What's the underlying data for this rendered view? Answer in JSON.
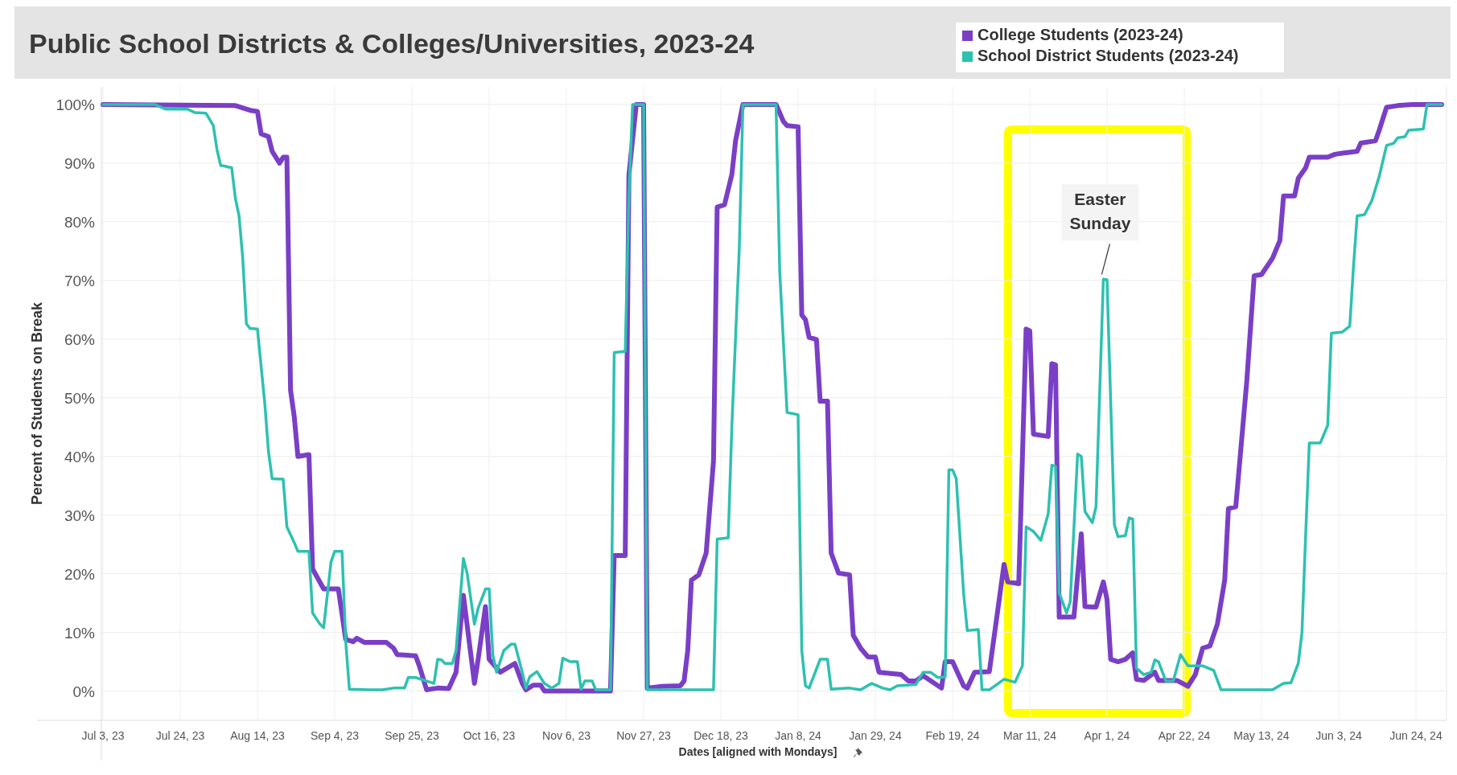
{
  "chart_data": {
    "type": "line",
    "title": "Public School Districts & Colleges/Universities, 2023-24",
    "xlabel": "Dates [aligned with Mondays]",
    "ylabel": "Percent of Students on Break",
    "xlim": [
      "2023-07-03",
      "2024-07-01"
    ],
    "xticks": [
      {
        "value": "2023-07-03",
        "label": "Jul 3, 23"
      },
      {
        "value": "2023-07-24",
        "label": "Jul 24, 23"
      },
      {
        "value": "2023-08-14",
        "label": "Aug 14, 23"
      },
      {
        "value": "2023-09-04",
        "label": "Sep 4, 23"
      },
      {
        "value": "2023-09-25",
        "label": "Sep 25, 23"
      },
      {
        "value": "2023-10-16",
        "label": "Oct 16, 23"
      },
      {
        "value": "2023-11-06",
        "label": "Nov 6, 23"
      },
      {
        "value": "2023-11-27",
        "label": "Nov 27, 23"
      },
      {
        "value": "2023-12-18",
        "label": "Dec 18, 23"
      },
      {
        "value": "2024-01-08",
        "label": "Jan 8, 24"
      },
      {
        "value": "2024-01-29",
        "label": "Jan 29, 24"
      },
      {
        "value": "2024-02-19",
        "label": "Feb 19, 24"
      },
      {
        "value": "2024-03-11",
        "label": "Mar 11, 24"
      },
      {
        "value": "2024-04-01",
        "label": "Apr 1, 24"
      },
      {
        "value": "2024-04-22",
        "label": "Apr 22, 24"
      },
      {
        "value": "2024-05-13",
        "label": "May 13, 24"
      },
      {
        "value": "2024-06-03",
        "label": "Jun 3, 24"
      },
      {
        "value": "2024-06-24",
        "label": "Jun 24, 24"
      }
    ],
    "ylim": [
      -5,
      103
    ],
    "yticks": [
      {
        "value": 0,
        "label": "0%"
      },
      {
        "value": 10,
        "label": "10%"
      },
      {
        "value": 20,
        "label": "20%"
      },
      {
        "value": 30,
        "label": "30%"
      },
      {
        "value": 40,
        "label": "40%"
      },
      {
        "value": 50,
        "label": "50%"
      },
      {
        "value": 60,
        "label": "60%"
      },
      {
        "value": 70,
        "label": "70%"
      },
      {
        "value": 80,
        "label": "80%"
      },
      {
        "value": 90,
        "label": "90%"
      },
      {
        "value": 100,
        "label": "100%"
      }
    ],
    "grid": true,
    "legend": "top right",
    "annotations": [
      {
        "text": "Easter Sunday",
        "x": "2024-03-31",
        "y": 70.2
      }
    ],
    "series": [
      {
        "name": "College Students (2023-24)",
        "color": "#7a3fc6",
        "x": [
          "2023-07-03",
          "2023-08-08",
          "2023-08-12",
          "2023-08-14",
          "2023-08-15",
          "2023-08-17",
          "2023-08-18",
          "2023-08-20",
          "2023-08-21",
          "2023-08-22",
          "2023-08-23",
          "2023-08-24",
          "2023-08-25",
          "2023-08-28",
          "2023-08-29",
          "2023-09-01",
          "2023-09-05",
          "2023-09-07",
          "2023-09-09",
          "2023-09-10",
          "2023-09-12",
          "2023-09-18",
          "2023-09-20",
          "2023-09-21",
          "2023-09-26",
          "2023-09-27",
          "2023-09-29",
          "2023-10-02",
          "2023-10-05",
          "2023-10-07",
          "2023-10-09",
          "2023-10-12",
          "2023-10-13",
          "2023-10-15",
          "2023-10-16",
          "2023-10-19",
          "2023-10-23",
          "2023-10-25",
          "2023-10-26",
          "2023-10-28",
          "2023-10-30",
          "2023-10-31",
          "2023-11-18",
          "2023-11-19",
          "2023-11-22",
          "2023-11-23",
          "2023-11-25",
          "2023-11-27",
          "2023-11-28",
          "2023-12-02",
          "2023-12-07",
          "2023-12-08",
          "2023-12-09",
          "2023-12-10",
          "2023-12-12",
          "2023-12-14",
          "2023-12-16",
          "2023-12-17",
          "2023-12-19",
          "2023-12-21",
          "2023-12-22",
          "2023-12-24",
          "2024-01-02",
          "2024-01-04",
          "2024-01-05",
          "2024-01-08",
          "2024-01-09",
          "2024-01-10",
          "2024-01-11",
          "2024-01-13",
          "2024-01-14",
          "2024-01-16",
          "2024-01-17",
          "2024-01-19",
          "2024-01-22",
          "2024-01-23",
          "2024-01-25",
          "2024-01-27",
          "2024-01-29",
          "2024-01-30",
          "2024-02-05",
          "2024-02-07",
          "2024-02-09",
          "2024-02-11",
          "2024-02-16",
          "2024-02-17",
          "2024-02-19",
          "2024-02-22",
          "2024-02-23",
          "2024-02-25",
          "2024-02-29",
          "2024-03-04",
          "2024-03-05",
          "2024-03-08",
          "2024-03-10",
          "2024-03-11",
          "2024-03-12",
          "2024-03-16",
          "2024-03-17",
          "2024-03-18",
          "2024-03-19",
          "2024-03-23",
          "2024-03-25",
          "2024-03-26",
          "2024-03-29",
          "2024-03-31",
          "2024-04-01",
          "2024-04-02",
          "2024-04-04",
          "2024-04-06",
          "2024-04-08",
          "2024-04-09",
          "2024-04-11",
          "2024-04-14",
          "2024-04-15",
          "2024-04-20",
          "2024-04-23",
          "2024-04-25",
          "2024-04-27",
          "2024-04-29",
          "2024-05-01",
          "2024-05-03",
          "2024-05-04",
          "2024-05-06",
          "2024-05-07",
          "2024-05-09",
          "2024-05-11",
          "2024-05-13",
          "2024-05-16",
          "2024-05-18",
          "2024-05-19",
          "2024-05-22",
          "2024-05-23",
          "2024-05-25",
          "2024-05-26",
          "2024-05-31",
          "2024-06-02",
          "2024-06-04",
          "2024-06-08",
          "2024-06-09",
          "2024-06-13",
          "2024-06-14",
          "2024-06-16",
          "2024-06-19",
          "2024-06-23",
          "2024-07-01"
        ],
        "values": [
          100,
          99.8,
          99,
          98.8,
          95,
          94.5,
          92,
          90,
          91,
          91,
          51.3,
          46.8,
          40,
          40.3,
          20.8,
          17.4,
          17.4,
          8.8,
          8.4,
          9,
          8.3,
          8.3,
          7.3,
          6.2,
          6,
          4.3,
          0.2,
          0.5,
          0.4,
          3.2,
          16.3,
          1.3,
          5.4,
          14.4,
          5.4,
          3.2,
          4.7,
          1.3,
          0.2,
          1,
          1,
          0,
          0,
          23.1,
          23.1,
          88,
          100,
          100,
          0.5,
          0.8,
          0.9,
          1.7,
          6.9,
          18.9,
          19.8,
          23.5,
          39.2,
          82.5,
          82.9,
          88.1,
          93.8,
          100,
          100,
          97.1,
          96.4,
          96.2,
          64.1,
          63.3,
          60.3,
          59.9,
          49.4,
          49.4,
          23.5,
          20.1,
          19.8,
          9.5,
          7.3,
          5.8,
          5.8,
          3.2,
          2.8,
          1.7,
          1.7,
          2.6,
          0.5,
          5,
          5,
          0.9,
          0.5,
          3.2,
          3.3,
          21.6,
          18.6,
          18.3,
          61.7,
          61.4,
          43.8,
          43.4,
          55.8,
          55.6,
          12.6,
          12.6,
          26.8,
          14.4,
          14.3,
          18.6,
          15.6,
          5.4,
          5,
          5.4,
          6.5,
          2,
          1.8,
          3.2,
          1.8,
          1.8,
          0.8,
          2.8,
          7.3,
          7.7,
          11.4,
          18.9,
          31.1,
          31.4,
          38.5,
          52.8,
          70.8,
          71,
          73.8,
          76.8,
          84.4,
          84.4,
          87.4,
          89.2,
          91,
          91,
          91.5,
          91.7,
          92,
          93.4,
          93.8,
          95.6,
          99.5,
          99.8,
          100,
          100
        ]
      },
      {
        "name": "School District Students (2023-24)",
        "color": "#2dc1b0",
        "x": [
          "2023-07-03",
          "2023-07-17",
          "2023-07-20",
          "2023-07-26",
          "2023-07-28",
          "2023-07-31",
          "2023-08-02",
          "2023-08-03",
          "2023-08-04",
          "2023-08-05",
          "2023-08-07",
          "2023-08-08",
          "2023-08-09",
          "2023-08-10",
          "2023-08-11",
          "2023-08-12",
          "2023-08-14",
          "2023-08-16",
          "2023-08-17",
          "2023-08-18",
          "2023-08-21",
          "2023-08-22",
          "2023-08-24",
          "2023-08-25",
          "2023-08-28",
          "2023-08-29",
          "2023-08-31",
          "2023-09-01",
          "2023-09-03",
          "2023-09-04",
          "2023-09-06",
          "2023-09-07",
          "2023-09-08",
          "2023-09-13",
          "2023-09-17",
          "2023-09-20",
          "2023-09-23",
          "2023-09-24",
          "2023-09-26",
          "2023-09-30",
          "2023-10-01",
          "2023-10-02",
          "2023-10-03",
          "2023-10-04",
          "2023-10-06",
          "2023-10-07",
          "2023-10-09",
          "2023-10-10",
          "2023-10-12",
          "2023-10-13",
          "2023-10-15",
          "2023-10-16",
          "2023-10-17",
          "2023-10-18",
          "2023-10-20",
          "2023-10-22",
          "2023-10-23",
          "2023-10-25",
          "2023-10-26",
          "2023-10-27",
          "2023-10-29",
          "2023-10-31",
          "2023-11-02",
          "2023-11-04",
          "2023-11-05",
          "2023-11-07",
          "2023-11-09",
          "2023-11-10",
          "2023-11-11",
          "2023-11-13",
          "2023-11-14",
          "2023-11-18",
          "2023-11-19",
          "2023-11-22",
          "2023-11-23",
          "2023-11-24",
          "2023-11-27",
          "2023-11-28",
          "2023-12-16",
          "2023-12-17",
          "2023-12-20",
          "2023-12-21",
          "2023-12-23",
          "2023-12-24",
          "2024-01-02",
          "2024-01-03",
          "2024-01-05",
          "2024-01-08",
          "2024-01-09",
          "2024-01-10",
          "2024-01-11",
          "2024-01-14",
          "2024-01-16",
          "2024-01-17",
          "2024-01-22",
          "2024-01-25",
          "2024-01-28",
          "2024-01-31",
          "2024-02-02",
          "2024-02-04",
          "2024-02-09",
          "2024-02-11",
          "2024-02-13",
          "2024-02-15",
          "2024-02-17",
          "2024-02-18",
          "2024-02-19",
          "2024-02-20",
          "2024-02-22",
          "2024-02-23",
          "2024-02-26",
          "2024-02-27",
          "2024-02-29",
          "2024-03-04",
          "2024-03-07",
          "2024-03-09",
          "2024-03-10",
          "2024-03-12",
          "2024-03-14",
          "2024-03-16",
          "2024-03-17",
          "2024-03-18",
          "2024-03-19",
          "2024-03-21",
          "2024-03-22",
          "2024-03-24",
          "2024-03-25",
          "2024-03-26",
          "2024-03-28",
          "2024-03-29",
          "2024-03-31",
          "2024-04-01",
          "2024-04-03",
          "2024-04-04",
          "2024-04-06",
          "2024-04-07",
          "2024-04-08",
          "2024-04-09",
          "2024-04-11",
          "2024-04-13",
          "2024-04-14",
          "2024-04-15",
          "2024-04-17",
          "2024-04-19",
          "2024-04-21",
          "2024-04-23",
          "2024-04-27",
          "2024-04-30",
          "2024-05-02",
          "2024-05-16",
          "2024-05-19",
          "2024-05-21",
          "2024-05-23",
          "2024-05-24",
          "2024-05-25",
          "2024-05-26",
          "2024-05-29",
          "2024-05-31",
          "2024-06-01",
          "2024-06-04",
          "2024-06-06",
          "2024-06-07",
          "2024-06-08",
          "2024-06-10",
          "2024-06-12",
          "2024-06-14",
          "2024-06-16",
          "2024-06-18",
          "2024-06-19",
          "2024-06-21",
          "2024-06-22",
          "2024-06-26",
          "2024-06-27",
          "2024-07-01"
        ],
        "values": [
          100,
          100,
          99.2,
          99.2,
          98.6,
          98.5,
          96.4,
          92.3,
          89.6,
          89.5,
          89.2,
          84,
          81,
          73.8,
          62.6,
          61.8,
          61.7,
          49,
          40.8,
          36.2,
          36.1,
          28,
          25.3,
          23.8,
          23.8,
          13.3,
          11.4,
          10.8,
          22,
          23.8,
          23.8,
          8.4,
          0.3,
          0.2,
          0.2,
          0.5,
          0.5,
          2.3,
          2.3,
          1.5,
          1.3,
          5.4,
          5.3,
          4.7,
          4.7,
          6.9,
          22.6,
          20.1,
          11.4,
          14.1,
          17.4,
          17.4,
          6.2,
          3.2,
          6.9,
          8,
          8,
          3.2,
          0.5,
          2.4,
          3.3,
          1.3,
          0.5,
          1.3,
          5.6,
          5,
          5,
          0.3,
          1.7,
          1.7,
          0.2,
          0.2,
          57.7,
          57.9,
          84.4,
          100,
          100,
          0.2,
          0.2,
          25.9,
          26.1,
          45.3,
          75.3,
          100,
          100,
          71.6,
          47.5,
          47.1,
          6.9,
          0.9,
          0.5,
          5.4,
          5.4,
          0.3,
          0.5,
          0.2,
          1.3,
          0.5,
          0.2,
          0.9,
          1.1,
          3.2,
          3.2,
          2.3,
          2.4,
          37.7,
          37.7,
          36.2,
          16.7,
          10.3,
          10.5,
          0.2,
          0.2,
          2,
          1.5,
          4.3,
          28,
          27.2,
          25.7,
          30.2,
          38.5,
          38.3,
          16.7,
          13.3,
          15.2,
          40.4,
          40,
          30.6,
          28.7,
          31.4,
          70.2,
          70.1,
          28.3,
          26.3,
          26.5,
          29.5,
          29.3,
          3.9,
          2.8,
          3.2,
          5.3,
          5,
          1.7,
          1.7,
          6.2,
          4.3,
          4.3,
          3.5,
          0.2,
          0.2,
          1.3,
          1.4,
          4.7,
          9.9,
          26.5,
          42.3,
          42.3,
          45.3,
          61,
          61.2,
          62.2,
          72.3,
          81,
          81.2,
          83.6,
          87.7,
          93,
          93.4,
          94.3,
          94.5,
          95.6,
          95.8,
          100,
          100
        ]
      }
    ]
  }
}
